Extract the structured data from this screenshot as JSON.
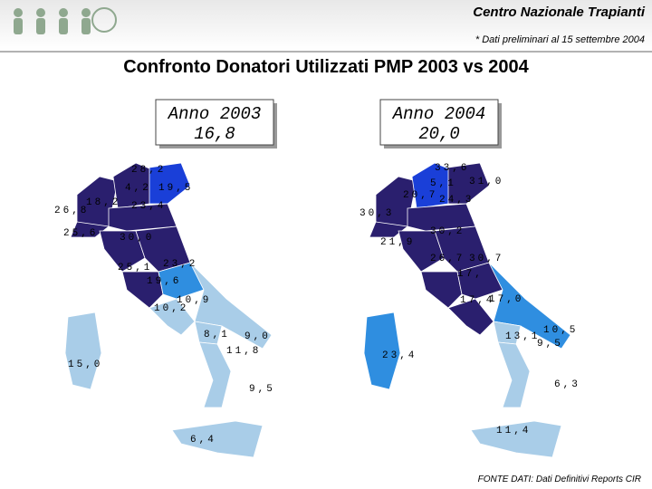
{
  "header": {
    "organization": "Centro Nazionale Trapianti",
    "note": "* Dati preliminari al 15 settembre 2004",
    "title": "Confronto Donatori Utilizzati PMP 2003 vs 2004"
  },
  "maps": [
    {
      "year": "Anno 2003",
      "total": "16,8",
      "labels": [
        "28,2",
        "4,2",
        "19,5",
        "18,2",
        "26,8",
        "23,4",
        "25,6",
        "30,0",
        "25,1",
        "23,2",
        "19,6",
        "10,9",
        "10,2",
        "8,1",
        "9,0",
        "11,8",
        "15,0",
        "9,5",
        "6,4"
      ]
    },
    {
      "year": "Anno 2004",
      "total": "20,0",
      "labels": [
        "33,6",
        "5,1",
        "31,0",
        "20,7",
        "24,3",
        "30,3",
        "30,2",
        "21,9",
        "26,7",
        "30,7",
        "17,",
        "17,4",
        "17,0",
        "13,1",
        "10,5",
        "9,5",
        "23,4",
        "6,3",
        "11,4"
      ]
    }
  ],
  "source": "FONTE DATI: Dati Definitivi Reports CIR"
}
